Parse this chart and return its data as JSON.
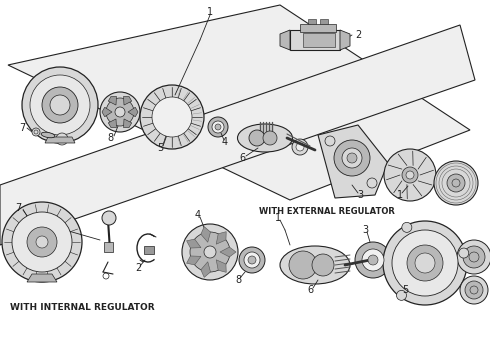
{
  "background_color": "#ffffff",
  "text_with_external": "WITH EXTERNAL REGULATOR",
  "text_with_internal": "WITH INTERNAL REGULATOR",
  "fig_width": 4.9,
  "fig_height": 3.6,
  "dpi": 100,
  "lc": "#222222",
  "gray1": "#d8d8d8",
  "gray2": "#b8b8b8",
  "gray3": "#999999",
  "band_color": "#efefef"
}
